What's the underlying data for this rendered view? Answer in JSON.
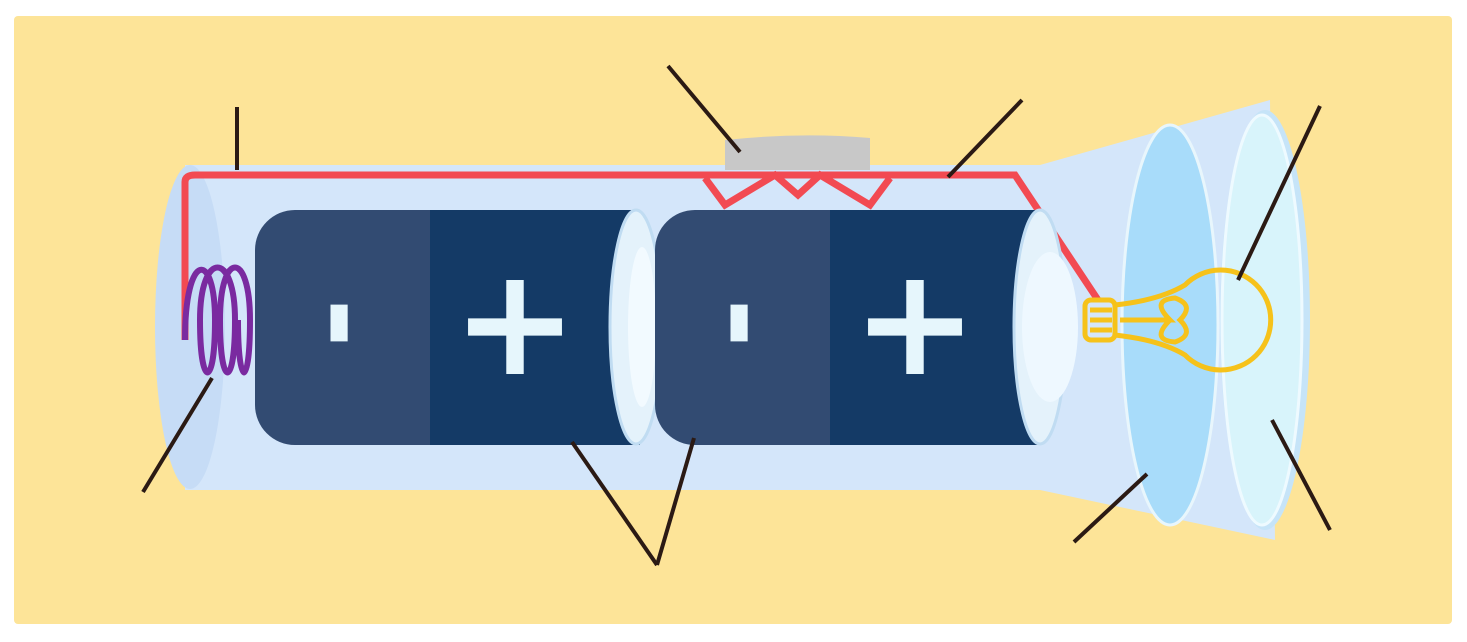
{
  "batteries": [
    {
      "negative": "-",
      "positive": "+"
    },
    {
      "negative": "-",
      "positive": "+"
    }
  ]
}
